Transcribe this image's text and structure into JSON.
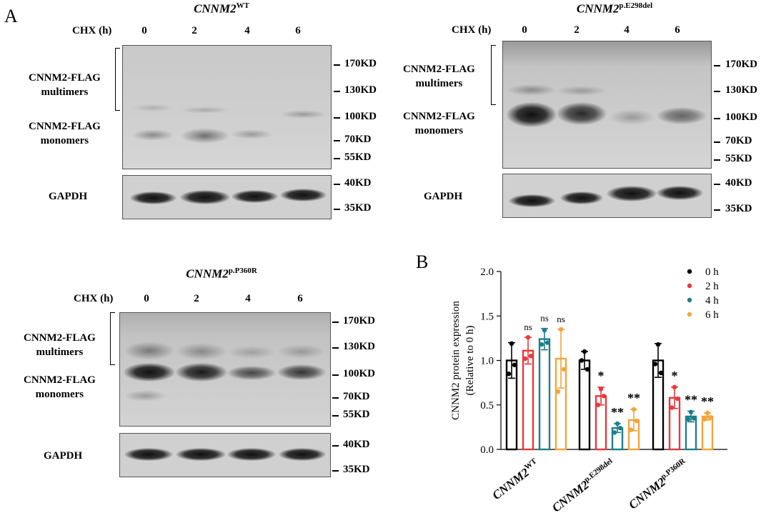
{
  "panel_labels": {
    "a": "A",
    "b": "B"
  },
  "blots": {
    "wt": {
      "gene": "CNNM2",
      "variant": "WT"
    },
    "e298": {
      "gene": "CNNM2",
      "variant": "p.E298del"
    },
    "p360": {
      "gene": "CNNM2",
      "variant": "p.P360R"
    }
  },
  "chx_label": "CHX (h)",
  "timepoints": [
    "0",
    "2",
    "4",
    "6"
  ],
  "multimer_label": [
    "CNNM2-FLAG",
    "multimers"
  ],
  "monomer_label": [
    "CNNM2-FLAG",
    "monomers"
  ],
  "gapdh_label": "GAPDH",
  "mw_markers": [
    "170KD",
    "130KD",
    "100KD",
    "70KD",
    "55KD"
  ],
  "gapdh_markers": [
    "40KD",
    "35KD"
  ],
  "colors": {
    "h0": "#000000",
    "h2": "#e8393c",
    "h4": "#1e7f8c",
    "h6": "#f4a43a"
  },
  "chart_data": {
    "type": "bar",
    "ylabel": "CNNM2 protein expression\n(Relative to 0 h)",
    "ylim": [
      0,
      2.0
    ],
    "yticks": [
      "0.0",
      "0.5",
      "1.0",
      "1.5",
      "2.0"
    ],
    "groups": [
      {
        "gene": "CNNM2",
        "variant": "WT"
      },
      {
        "gene": "CNNM2",
        "variant": "p.E298del"
      },
      {
        "gene": "CNNM2",
        "variant": "p.P360R"
      }
    ],
    "series": [
      {
        "name": "0 h",
        "color": "#000000",
        "values": [
          1.0,
          1.0,
          1.0
        ],
        "sd": [
          0.2,
          0.1,
          0.19
        ],
        "points": [
          [
            1.19,
            0.95,
            0.85
          ],
          [
            1.1,
            0.9,
            1.0
          ],
          [
            1.18,
            0.86,
            0.96
          ]
        ],
        "sig": [
          "",
          "",
          ""
        ]
      },
      {
        "name": "2 h",
        "color": "#e8393c",
        "values": [
          1.11,
          0.6,
          0.58
        ],
        "sd": [
          0.15,
          0.1,
          0.12
        ],
        "points": [
          [
            1.26,
            1.05,
            1.02
          ],
          [
            0.68,
            0.6,
            0.5
          ],
          [
            0.7,
            0.57,
            0.47
          ]
        ],
        "sig": [
          "ns",
          "*",
          "*"
        ]
      },
      {
        "name": "4 h",
        "color": "#1e7f8c",
        "values": [
          1.24,
          0.24,
          0.37
        ],
        "sd": [
          0.12,
          0.05,
          0.06
        ],
        "points": [
          [
            1.34,
            1.2,
            1.18
          ],
          [
            0.29,
            0.24,
            0.19
          ],
          [
            0.42,
            0.35,
            0.34
          ]
        ],
        "sig": [
          "ns",
          "**",
          "**"
        ]
      },
      {
        "name": "6 h",
        "color": "#f4a43a",
        "values": [
          1.02,
          0.33,
          0.37
        ],
        "sd": [
          0.33,
          0.12,
          0.04
        ],
        "points": [
          [
            1.35,
            0.9,
            0.65
          ],
          [
            0.45,
            0.32,
            0.22
          ],
          [
            0.41,
            0.36,
            0.34
          ]
        ],
        "sig": [
          "ns",
          "**",
          "**"
        ]
      }
    ],
    "legend": {
      "position": "top-right"
    }
  }
}
